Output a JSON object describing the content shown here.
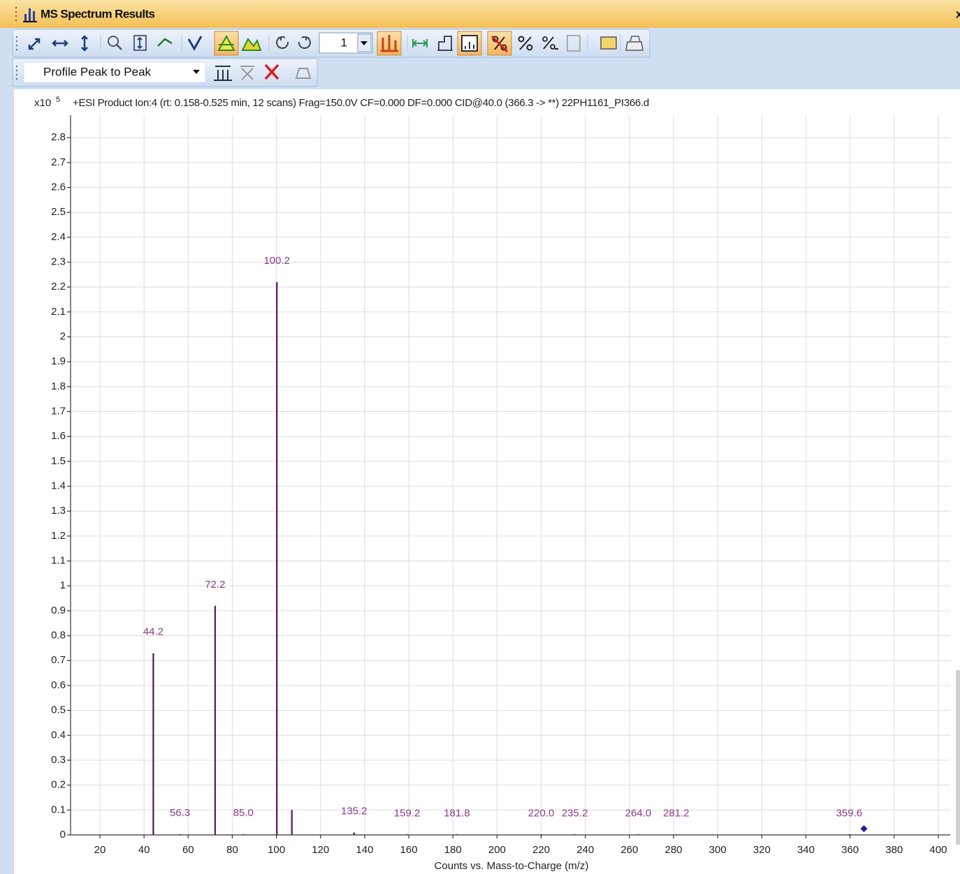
{
  "window": {
    "title": "MS Spectrum Results",
    "close": "x"
  },
  "toolbar": {
    "page_value": "1",
    "mode": "Profile Peak to Peak"
  },
  "chart_data": {
    "type": "bar",
    "title": "+ESI Product Ion:4 (rt: 0.158-0.525 min, 12 scans) Frag=150.0V CF=0.000 DF=0.000 CID@40.0 (366.3 -> **) 22PH1161_PI366.d",
    "y_multiplier": {
      "base": "x10",
      "exponent": "5"
    },
    "x_label": "Counts vs. Mass-to-Charge (m/z)",
    "x": [
      44.2,
      56.3,
      72.2,
      85.0,
      100.2,
      107.0,
      135.2,
      159.2,
      181.8,
      220.0,
      235.2,
      264.0,
      281.2,
      359.6
    ],
    "values": [
      0.73,
      0.003,
      0.92,
      0.003,
      2.22,
      0.1,
      0.01,
      0.002,
      0.002,
      0.001,
      0.001,
      0.001,
      0.001,
      0.001
    ],
    "peak_labels": [
      "44.2",
      "56.3",
      "72.2",
      "85.0",
      "100.2",
      null,
      "135.2",
      "159.2",
      "181.8",
      "220.0",
      "235.2",
      "264.0",
      "281.2",
      "359.6"
    ],
    "color": "#5a1460",
    "label_color": "#8a3a8a",
    "precursor": {
      "x": 366.3,
      "value": 0.025,
      "color": "#1c1ca8"
    },
    "xlim": [
      6.7,
      405.4
    ],
    "ylim": [
      0,
      2.89
    ],
    "xticks": [
      20,
      40,
      60,
      80,
      100,
      120,
      140,
      160,
      180,
      200,
      220,
      240,
      260,
      280,
      300,
      320,
      340,
      360,
      380,
      400
    ],
    "yticks": [
      0,
      0.1,
      0.2,
      0.3,
      0.4,
      0.5,
      0.6,
      0.7,
      0.8,
      0.9,
      1,
      1.1,
      1.2,
      1.3,
      1.4,
      1.5,
      1.6,
      1.7,
      1.8,
      1.9,
      2,
      2.1,
      2.2,
      2.3,
      2.4,
      2.5,
      2.6,
      2.7,
      2.8
    ],
    "grid": true
  }
}
